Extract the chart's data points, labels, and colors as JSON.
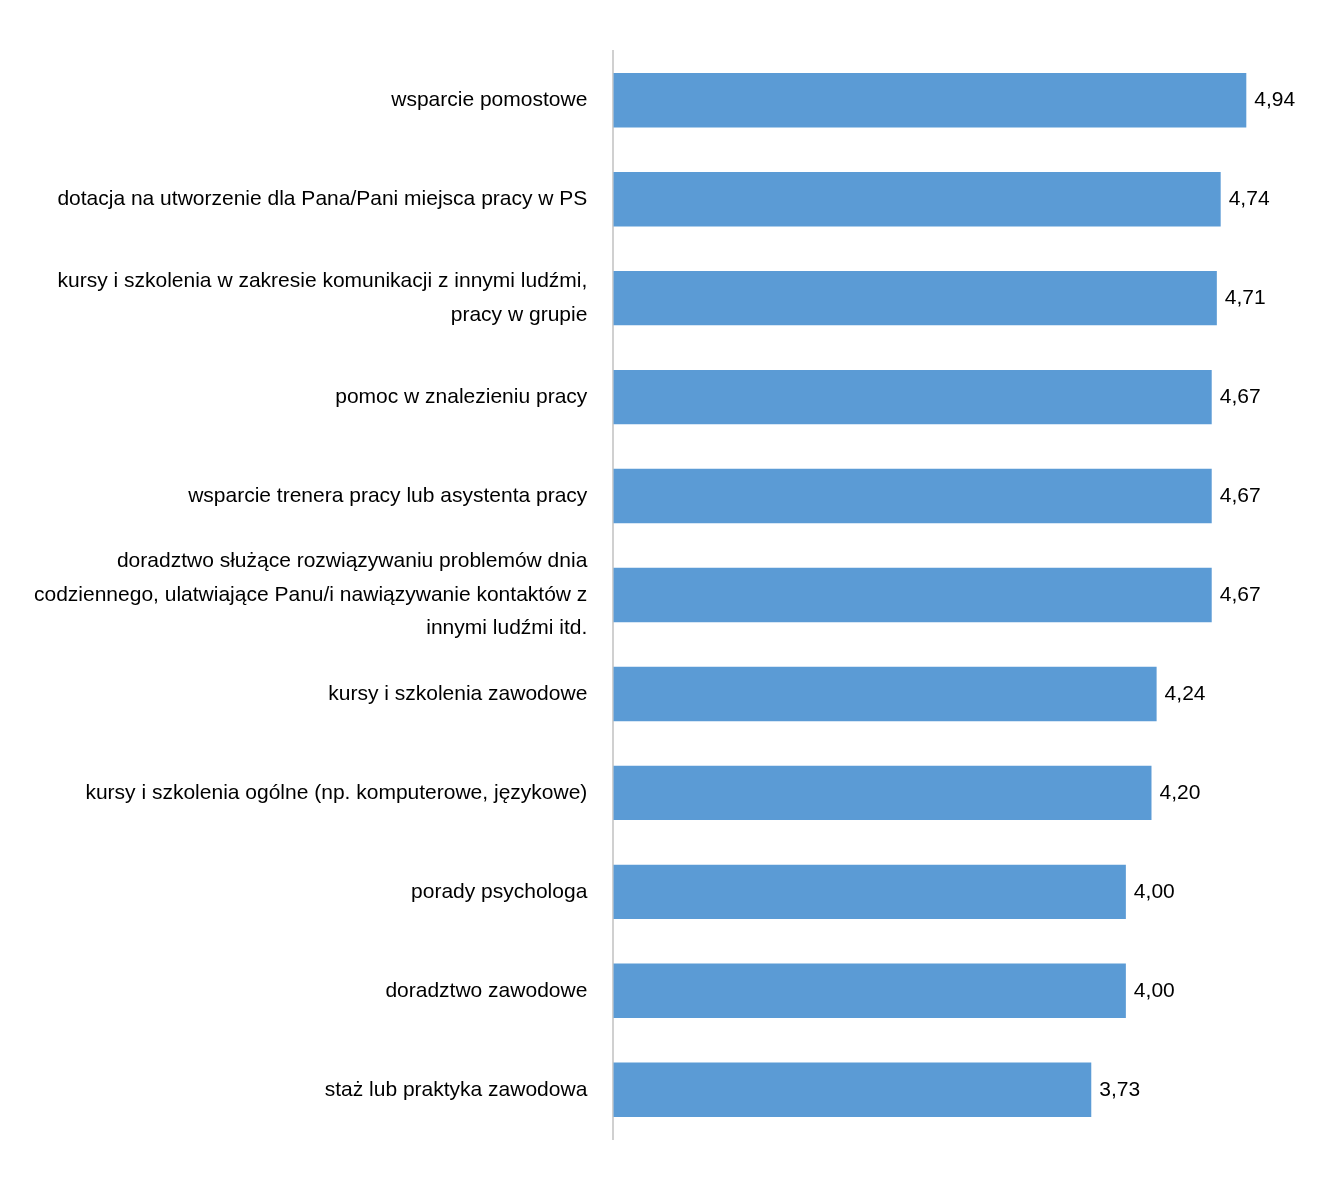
{
  "chart_data": {
    "type": "bar",
    "orientation": "horizontal",
    "categories": [
      "wsparcie pomostowe",
      "dotacja na utworzenie dla Pana/Pani miejsca pracy w PS",
      "kursy i szkolenia w zakresie komunikacji z innymi ludźmi, pracy w grupie",
      "pomoc w znalezieniu pracy",
      "wsparcie trenera pracy lub asystenta pracy",
      "doradztwo służące rozwiązywaniu problemów dnia codziennego, ulatwiające Panu/i nawiązywanie kontaktów z innymi ludźmi itd.",
      "kursy i szkolenia zawodowe",
      "kursy i szkolenia ogólne (np. komputerowe, językowe)",
      "porady psychologa",
      "doradztwo zawodowe",
      "staż lub praktyka zawodowa"
    ],
    "values": [
      4.94,
      4.74,
      4.71,
      4.67,
      4.67,
      4.67,
      4.24,
      4.2,
      4.0,
      4.0,
      3.73
    ],
    "value_labels": [
      "4,94",
      "4,74",
      "4,71",
      "4,67",
      "4,67",
      "4,67",
      "4,24",
      "4,20",
      "4,00",
      "4,00",
      "3,73"
    ],
    "color": "#5b9bd5",
    "legend": false,
    "tick_labels": "y"
  }
}
